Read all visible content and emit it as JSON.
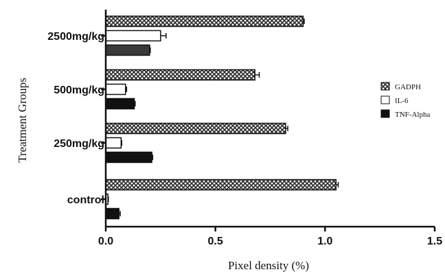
{
  "chart_data": {
    "type": "bar",
    "orientation": "horizontal",
    "categories": [
      "2500mg/kg",
      "500mg/kg",
      "250mg/kg",
      "control"
    ],
    "series": [
      {
        "name": "GADPH",
        "values": [
          0.9,
          0.68,
          0.82,
          1.05
        ],
        "errors": [
          0.005,
          0.02,
          0.01,
          0.01
        ],
        "fill": "crosshatch"
      },
      {
        "name": "IL-6",
        "values": [
          0.25,
          0.09,
          0.07,
          0.01
        ],
        "errors": [
          0.025,
          0.005,
          0.003,
          0.002
        ],
        "fill": "white"
      },
      {
        "name": "TNF-Alpha",
        "values": [
          0.2,
          0.13,
          0.21,
          0.06
        ],
        "errors": [
          0.003,
          0.004,
          0.004,
          0.006
        ],
        "fill": "black"
      }
    ],
    "xlabel": "Pixel density (%)",
    "ylabel": "Treatment Groups",
    "xlim": [
      0,
      1.5
    ],
    "xticks": [
      "0.0",
      "0.5",
      "1.0",
      "1.5"
    ],
    "grid": false,
    "legend_position": "right",
    "colors": {
      "axis": "#111111",
      "hatch_dark": "#2a2a2a",
      "bar_black": "#111111",
      "bar_dark": "#3a3a3a"
    }
  }
}
